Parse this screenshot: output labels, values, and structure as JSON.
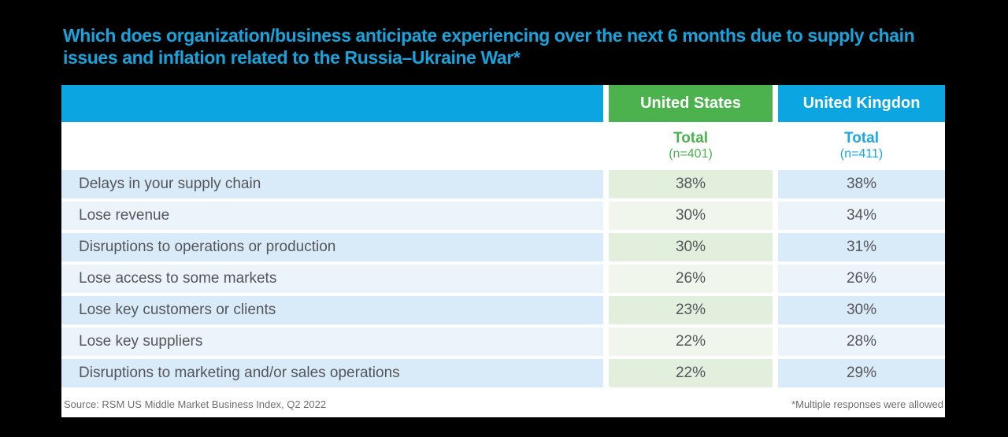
{
  "title": "Which does organization/business anticipate experiencing over the next 6 months due to supply chain issues and inflation related to the Russia–Ukraine War*",
  "table": {
    "column_headers": {
      "us": "United States",
      "uk": "United Kingdon"
    },
    "subheader": {
      "us": {
        "total_label": "Total",
        "n_label": "(n=401)"
      },
      "uk": {
        "total_label": "Total",
        "n_label": "(n=411)"
      }
    },
    "rows": [
      {
        "label": "Delays in your supply chain",
        "us": "38%",
        "uk": "38%"
      },
      {
        "label": "Lose revenue",
        "us": "30%",
        "uk": "34%"
      },
      {
        "label": "Disruptions to operations or production",
        "us": "30%",
        "uk": "31%"
      },
      {
        "label": "Lose access to some markets",
        "us": "26%",
        "uk": "26%"
      },
      {
        "label": "Lose key customers or clients",
        "us": "23%",
        "uk": "30%"
      },
      {
        "label": "Lose key suppliers",
        "us": "22%",
        "uk": "28%"
      },
      {
        "label": "Disruptions to marketing and/or sales operations",
        "us": "22%",
        "uk": "29%"
      }
    ]
  },
  "footer": {
    "source": "Source: RSM US Middle Market Business Index, Q2 2022",
    "note": "*Multiple responses were allowed"
  },
  "colors": {
    "background": "#000000",
    "panel": "#FFFFFF",
    "title_blue": "#15A4DD",
    "header_bar_blue": "#0BA5E1",
    "header_bar_green": "#4CB24E",
    "subheader_green_text": "#4CB250",
    "subheader_blue_text": "#1BA7E2",
    "row_blue_dark": "#D9EAF8",
    "row_blue_light": "#EBF4FB",
    "row_green_dark": "#E1EFDC",
    "row_green_light": "#F0F6EC",
    "body_text": "#55565B",
    "footer_text": "#6D6E71"
  },
  "chart_data": {
    "type": "table",
    "title": "Which does organization/business anticipate experiencing over the next 6 months due to supply chain issues and inflation related to the Russia–Ukraine War*",
    "categories": [
      "Delays in your supply chain",
      "Lose revenue",
      "Disruptions to operations or production",
      "Lose access to some markets",
      "Lose key customers or clients",
      "Lose key suppliers",
      "Disruptions to marketing and/or sales operations"
    ],
    "series": [
      {
        "name": "United States Total (n=401)",
        "values": [
          38,
          30,
          30,
          26,
          23,
          22,
          22
        ],
        "unit": "%"
      },
      {
        "name": "United Kingdon Total (n=411)",
        "values": [
          38,
          34,
          31,
          26,
          30,
          28,
          29
        ],
        "unit": "%"
      }
    ],
    "source": "Source: RSM US Middle Market Business Index, Q2 2022",
    "note": "*Multiple responses were allowed"
  }
}
